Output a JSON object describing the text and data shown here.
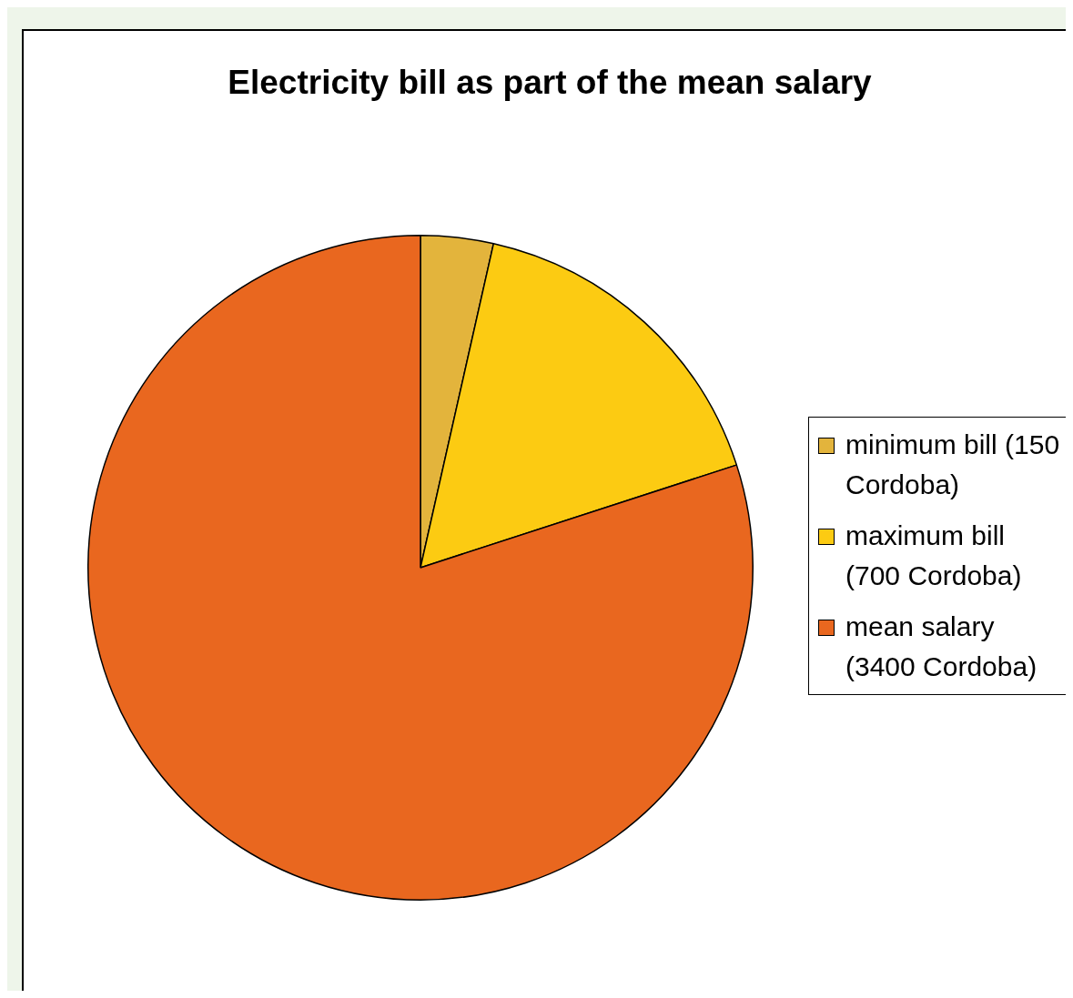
{
  "chart_data": {
    "type": "pie",
    "title": "Electricity bill as part of the mean salary",
    "categories": [
      "minimum bill (150 Cordoba)",
      "maximum bill (700 Cordoba)",
      "mean salary (3400 Cordoba)"
    ],
    "values": [
      150,
      700,
      3400
    ],
    "colors": [
      "#e3b43c",
      "#fccb12",
      "#e9671f"
    ],
    "legend": "right"
  }
}
